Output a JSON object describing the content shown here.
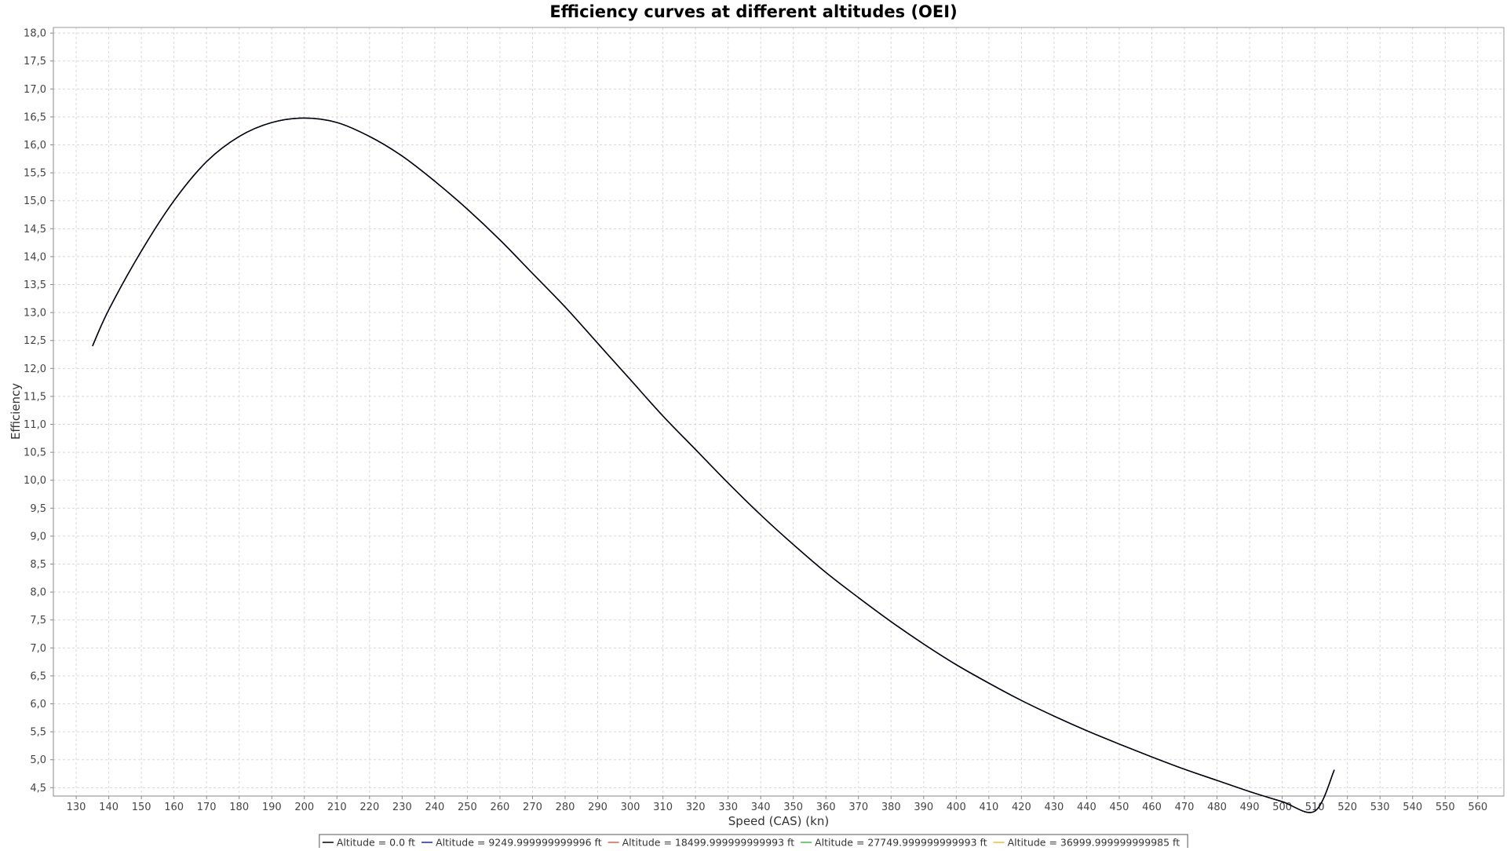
{
  "chart_data": {
    "type": "line",
    "title": "Efficiency curves at different altitudes (OEI)",
    "xlabel": "Speed (CAS) (kn)",
    "ylabel": "Efficiency",
    "xlim": [
      123,
      568
    ],
    "ylim": [
      4.35,
      18.1
    ],
    "xticks": [
      130,
      140,
      150,
      160,
      170,
      180,
      190,
      200,
      210,
      220,
      230,
      240,
      250,
      260,
      270,
      280,
      290,
      300,
      310,
      320,
      330,
      340,
      350,
      360,
      370,
      380,
      390,
      400,
      410,
      420,
      430,
      440,
      450,
      460,
      470,
      480,
      490,
      500,
      510,
      520,
      530,
      540,
      550,
      560
    ],
    "xtick_labels": [
      "130",
      "140",
      "150",
      "160",
      "170",
      "180",
      "190",
      "200",
      "210",
      "220",
      "230",
      "240",
      "250",
      "260",
      "270",
      "280",
      "290",
      "300",
      "310",
      "320",
      "330",
      "340",
      "350",
      "360",
      "370",
      "380",
      "390",
      "400",
      "410",
      "420",
      "430",
      "440",
      "450",
      "460",
      "470",
      "480",
      "490",
      "500",
      "510",
      "520",
      "530",
      "540",
      "550",
      "560"
    ],
    "yticks": [
      4.5,
      5.0,
      5.5,
      6.0,
      6.5,
      7.0,
      7.5,
      8.0,
      8.5,
      9.0,
      9.5,
      10.0,
      10.5,
      11.0,
      11.5,
      12.0,
      12.5,
      13.0,
      13.5,
      14.0,
      14.5,
      15.0,
      15.5,
      16.0,
      16.5,
      17.0,
      17.5,
      18.0
    ],
    "ytick_labels": [
      "4,5",
      "5,0",
      "5,5",
      "6,0",
      "6,5",
      "7,0",
      "7,5",
      "8,0",
      "8,5",
      "9,0",
      "9,5",
      "10,0",
      "10,5",
      "11,0",
      "11,5",
      "12,0",
      "12,5",
      "13,0",
      "13,5",
      "14,0",
      "14,5",
      "15,0",
      "15,5",
      "16,0",
      "16,5",
      "17,0",
      "17,5",
      "18,0"
    ],
    "grid": true,
    "legend_position": "bottom",
    "series": [
      {
        "name": "Altitude = 0.0 ft",
        "color": "#000000",
        "x": [
          135,
          140,
          150,
          160,
          170,
          180,
          190,
          200,
          210,
          220,
          230,
          240,
          250,
          260,
          270,
          280,
          290,
          300,
          310,
          320,
          330,
          340,
          350,
          360,
          370,
          380,
          390,
          400,
          410,
          420,
          430,
          440,
          450,
          460,
          470,
          480,
          490,
          500,
          510,
          516
        ],
        "y": [
          12.4,
          13.05,
          14.1,
          15.0,
          15.7,
          16.15,
          16.4,
          16.48,
          16.4,
          16.15,
          15.8,
          15.35,
          14.85,
          14.3,
          13.7,
          13.1,
          12.45,
          11.8,
          11.15,
          10.55,
          9.95,
          9.38,
          8.85,
          8.35,
          7.9,
          7.47,
          7.07,
          6.7,
          6.37,
          6.06,
          5.78,
          5.52,
          5.28,
          5.05,
          4.83,
          4.63,
          4.43,
          4.25,
          4.08,
          4.82
        ]
      },
      {
        "name": "Altitude = 9249.999999999996 ft",
        "color": "#2020c0",
        "x": [
          135,
          140,
          150,
          160,
          170,
          180,
          190,
          200,
          210,
          220,
          230,
          240,
          250,
          260,
          270,
          280,
          290,
          300,
          310,
          320,
          330,
          340,
          350,
          360,
          370,
          380,
          390,
          400,
          410,
          420,
          430,
          440,
          450,
          460,
          470,
          480,
          490,
          500,
          510,
          516
        ],
        "y": [
          12.4,
          13.05,
          14.1,
          15.0,
          15.7,
          16.15,
          16.4,
          16.48,
          16.4,
          16.15,
          15.8,
          15.35,
          14.85,
          14.3,
          13.7,
          13.1,
          12.45,
          11.8,
          11.15,
          10.55,
          9.95,
          9.38,
          8.85,
          8.35,
          7.9,
          7.47,
          7.07,
          6.7,
          6.37,
          6.06,
          5.78,
          5.52,
          5.28,
          5.05,
          4.83,
          4.63,
          4.43,
          4.25,
          4.08,
          4.82
        ]
      },
      {
        "name": "Altitude = 18499.999999999993 ft",
        "color": "#e0604a",
        "x": [],
        "y": []
      },
      {
        "name": "Altitude = 27749.999999999993 ft",
        "color": "#40c040",
        "x": [],
        "y": []
      },
      {
        "name": "Altitude = 36999.999999999985 ft",
        "color": "#e8c030",
        "x": [],
        "y": []
      }
    ]
  }
}
